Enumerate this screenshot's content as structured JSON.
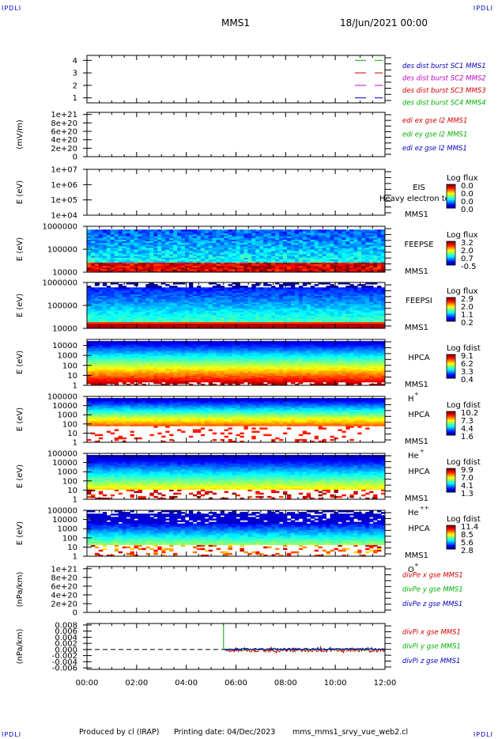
{
  "corner_label": "IPDLI",
  "header": {
    "title": "MMS1",
    "datetime": "18/Jun/2021 00:00"
  },
  "footer": {
    "producer": "Produced by cl (IRAP)",
    "printing": "Printing date: 04/Dec/2023",
    "file": "mms_mms1_srvy_vue_web2.cl"
  },
  "colors": {
    "red": "#d00000",
    "green": "#00b000",
    "blue": "#0000c0",
    "magenta": "#c000c0",
    "black": "#000000"
  },
  "chart_data": {
    "type": "line",
    "xaxis": {
      "ticks": [
        "00:00",
        "02:00",
        "04:00",
        "06:00",
        "08:00",
        "10:00",
        "12:00"
      ],
      "range_hours": [
        0,
        12
      ]
    },
    "panels": [
      {
        "id": "burst",
        "ylabel": "",
        "yticks": [
          "4",
          "3",
          "2",
          "1"
        ],
        "yvals": [
          4,
          3,
          2,
          1
        ],
        "ylim": [
          0.6,
          4.4
        ],
        "legend": [
          {
            "text": "des dist burst SC1 MMS1",
            "color": "#0000c0"
          },
          {
            "text": "des dist burst SC2 MMS2",
            "color": "#c000c0"
          },
          {
            "text": "des dist burst SC3 MMS3",
            "color": "#d00000"
          },
          {
            "text": "des dist burst SC4 MMS4",
            "color": "#00b000"
          }
        ],
        "marks": [
          {
            "y": 4,
            "color": "#00b000"
          },
          {
            "y": 3,
            "color": "#d00000"
          },
          {
            "y": 2,
            "color": "#c000c0"
          },
          {
            "y": 1,
            "color": "#0000c0"
          }
        ]
      },
      {
        "id": "edi",
        "ylabel": "(mV/m)",
        "yticks": [
          "1e+21",
          "8e+20",
          "6e+20",
          "4e+20",
          "2e+20",
          "0"
        ],
        "yvals": [
          1e+21,
          8e+20,
          6e+20,
          4e+20,
          2e+20,
          0
        ],
        "ylim": [
          0,
          1.05e+21
        ],
        "dashed_zero": true,
        "legend": [
          {
            "text": "edi ex gse l2 MMS1",
            "color": "#d00000"
          },
          {
            "text": "edi ey gse l2 MMS1",
            "color": "#00b000"
          },
          {
            "text": "edi ez gse l2 MMS1",
            "color": "#0000c0"
          }
        ]
      },
      {
        "id": "eis",
        "ylabel": "E (eV)",
        "yticks": [
          "1e+07",
          "1e+06",
          "1e+05",
          "1e+04"
        ],
        "log": true,
        "ylim": [
          10000,
          10000000
        ],
        "instrument": [
          "EIS",
          "MMS1"
        ],
        "overlay_text": "Heavy electron to",
        "cbar": {
          "label": "Log flux",
          "ticks": [
            "0.0",
            "0.0",
            "0.0",
            "0.0"
          ]
        }
      },
      {
        "id": "feepse",
        "ylabel": "E (eV)",
        "yticks": [
          "1000000",
          "100000",
          "10000"
        ],
        "log": true,
        "ylim": [
          10000,
          1000000
        ],
        "instrument": [
          "FEEPSE",
          "MMS1"
        ],
        "cbar": {
          "label": "Log flux",
          "ticks": [
            "3.2",
            "2.0",
            "0.7",
            "-0.5"
          ]
        }
      },
      {
        "id": "feepsi",
        "ylabel": "E (eV)",
        "yticks": [
          "1000000",
          "100000",
          "10000"
        ],
        "log": true,
        "ylim": [
          10000,
          1000000
        ],
        "instrument": [
          "FEEPSI",
          "MMS1"
        ],
        "cbar": {
          "label": "Log flux",
          "ticks": [
            "2.9",
            "2.0",
            "1.1",
            "0.2"
          ]
        }
      },
      {
        "id": "hpca_h",
        "ylabel": "E (eV)",
        "yticks": [
          "10000",
          "1000",
          "100",
          "10",
          "1"
        ],
        "log": true,
        "ylim": [
          1,
          40000
        ],
        "instrument": [
          "HPCA",
          "MMS1"
        ],
        "species": "H",
        "species_sup": "+",
        "cbar": {
          "label": "Log fdist",
          "ticks": [
            "9.1",
            "6.2",
            "3.3",
            "0.4"
          ]
        }
      },
      {
        "id": "hpca_he",
        "ylabel": "E (eV)",
        "yticks": [
          "100000",
          "10000",
          "1000",
          "100",
          "10",
          "1"
        ],
        "log": true,
        "ylim": [
          1,
          100000
        ],
        "instrument": [
          "HPCA",
          "MMS1"
        ],
        "species": "He",
        "species_sup": "+",
        "cbar": {
          "label": "Log fdist",
          "ticks": [
            "10.2",
            "7.3",
            "4.4",
            "1.6"
          ]
        }
      },
      {
        "id": "hpca_he2",
        "ylabel": "E (eV)",
        "yticks": [
          "100000",
          "10000",
          "1000",
          "100",
          "10",
          "1"
        ],
        "log": true,
        "ylim": [
          1,
          100000
        ],
        "instrument": [
          "HPCA",
          "MMS1"
        ],
        "species": "He",
        "species_sup": "++",
        "cbar": {
          "label": "Log fdist",
          "ticks": [
            "9.9",
            "7.0",
            "4.1",
            "1.3"
          ]
        }
      },
      {
        "id": "hpca_o",
        "ylabel": "E (eV)",
        "yticks": [
          "100000",
          "10000",
          "1000",
          "100",
          "10",
          "1"
        ],
        "log": true,
        "ylim": [
          1,
          100000
        ],
        "instrument": [
          "HPCA",
          "MMS1"
        ],
        "species": "O",
        "species_sup": "+",
        "cbar": {
          "label": "Log fdist",
          "ticks": [
            "11.4",
            "8.5",
            "5.6",
            "2.8"
          ]
        }
      },
      {
        "id": "divpe",
        "ylabel": "(nPa/km)",
        "yticks": [
          "1e+21",
          "8e+20",
          "6e+20",
          "4e+20",
          "2e+20",
          "0"
        ],
        "yvals": [
          1e+21,
          8e+20,
          6e+20,
          4e+20,
          2e+20,
          0
        ],
        "ylim": [
          0,
          1.05e+21
        ],
        "dashed_zero": true,
        "legend": [
          {
            "text": "divPe x gse MMS1",
            "color": "#d00000"
          },
          {
            "text": "divPe y gse MMS1",
            "color": "#00b000"
          },
          {
            "text": "divPe z gse MMS1",
            "color": "#0000c0"
          }
        ]
      },
      {
        "id": "divpi",
        "ylabel": "(nPa/km)",
        "yticks": [
          "0.008",
          "0.006",
          "0.004",
          "0.002",
          "0.000",
          "-0.002",
          "-0.004",
          "-0.006"
        ],
        "yvals": [
          0.008,
          0.006,
          0.004,
          0.002,
          0,
          -0.002,
          -0.004,
          -0.006
        ],
        "ylim": [
          -0.0065,
          0.0085
        ],
        "dashed_zero": true,
        "legend": [
          {
            "text": "divPi x gse MMS1",
            "color": "#d00000"
          },
          {
            "text": "divPi y gse MMS1",
            "color": "#00b000"
          },
          {
            "text": "divPi z gse MMS1",
            "color": "#0000c0"
          }
        ],
        "series": [
          {
            "name": "divPi x gse MMS1",
            "color": "#d00000",
            "start_hour": 5.6,
            "end_hour": 12,
            "level": -0.0002,
            "spread": 0.0012
          },
          {
            "name": "divPi y gse MMS1",
            "color": "#00b000",
            "start_hour": 5.5,
            "end_hour": 12,
            "level": 0.0,
            "spread": 0.0004,
            "spike": 0.008
          },
          {
            "name": "divPi z gse MMS1",
            "color": "#0000c0",
            "start_hour": 5.5,
            "end_hour": 12,
            "level": 0.0001,
            "spread": 0.0006
          }
        ]
      }
    ]
  }
}
